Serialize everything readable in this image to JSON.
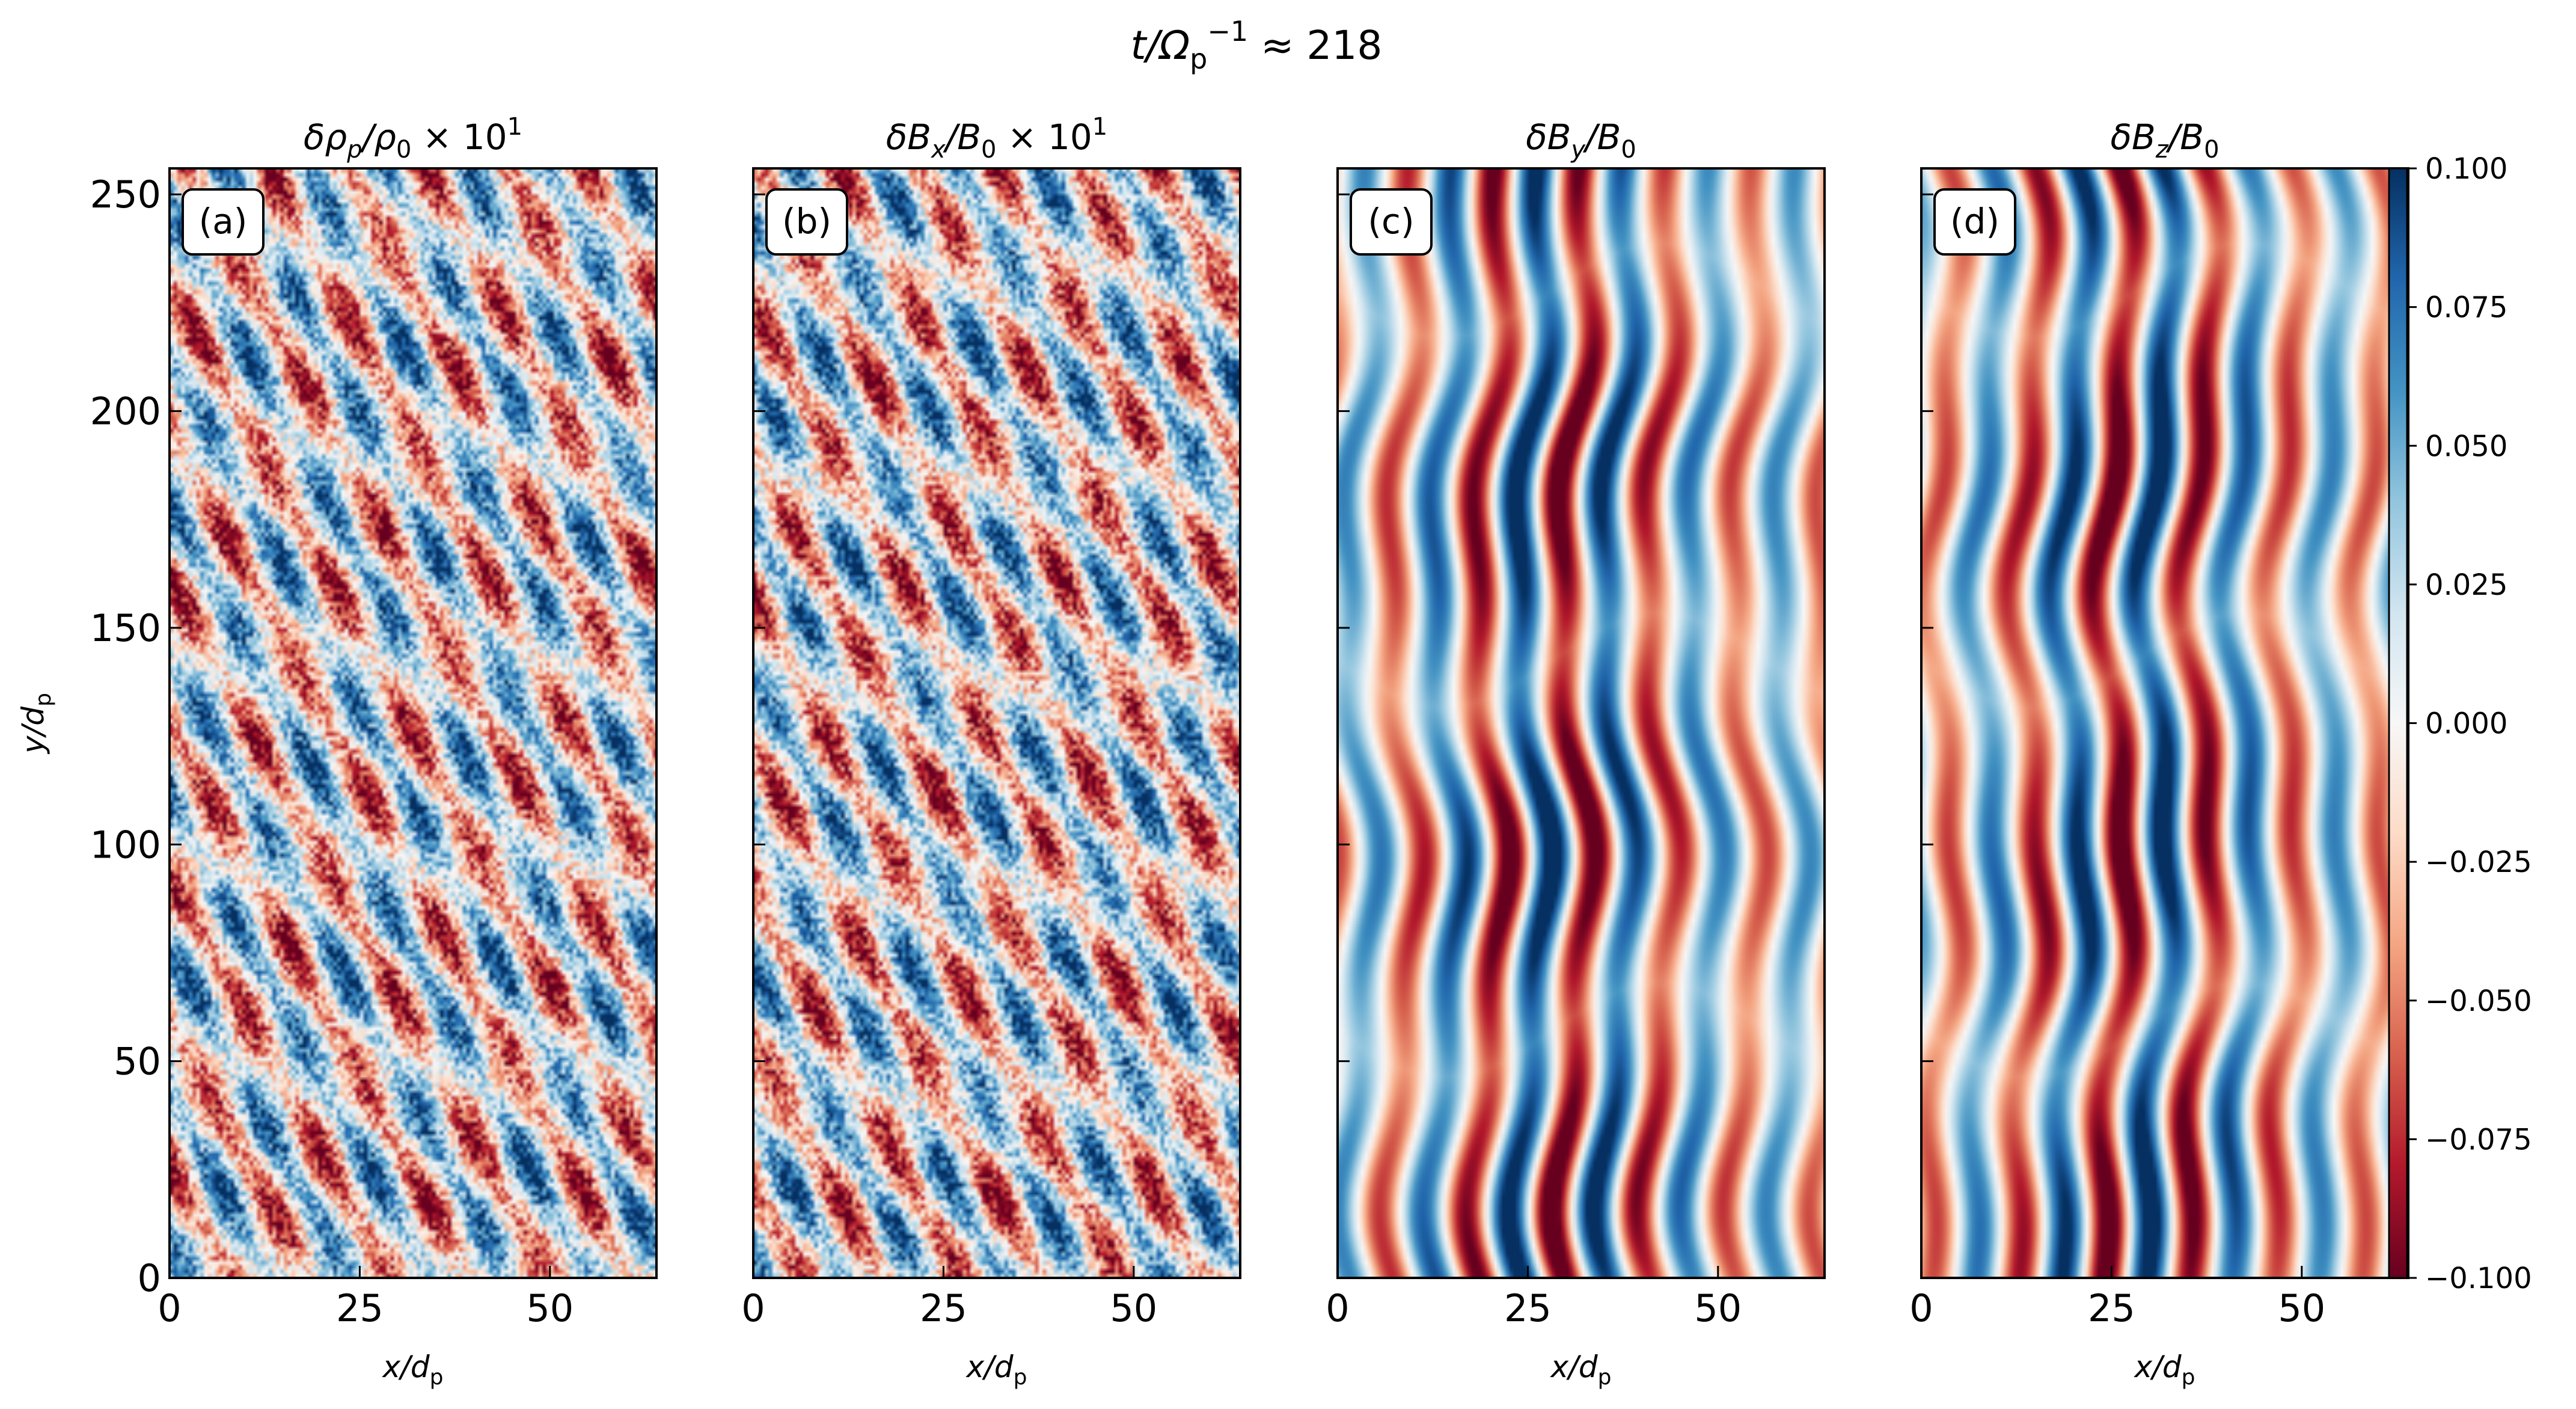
{
  "figure": {
    "suptitle": {
      "prefix": "t/Ω",
      "sub": "p",
      "sup": "−1",
      "suffix": " ≈ 218"
    }
  },
  "chart_data": [
    {
      "type": "heatmap",
      "panel_label": "(a)",
      "title": {
        "main": "δρ",
        "sub": "p",
        "rest": "/ρ",
        "sub2": "0",
        "tail": " × 10",
        "sup": "1"
      },
      "xlabel": {
        "main": "x/d",
        "sub": "p"
      },
      "ylabel": {
        "main": "y/d",
        "sub": "p"
      },
      "xlim": [
        0,
        64
      ],
      "ylim": [
        0,
        256
      ],
      "xticks": [
        0,
        25,
        50
      ],
      "yticks": [
        0,
        50,
        100,
        150,
        200,
        250
      ],
      "show_yticklabels": true,
      "clim": [
        -0.1,
        0.1
      ],
      "cmap": "RdBu",
      "field": "noisy oblique wave pattern"
    },
    {
      "type": "heatmap",
      "panel_label": "(b)",
      "title": {
        "main": "δB",
        "sub": "x",
        "rest": "/B",
        "sub2": "0",
        "tail": " × 10",
        "sup": "1"
      },
      "xlabel": {
        "main": "x/d",
        "sub": "p"
      },
      "xlim": [
        0,
        64
      ],
      "ylim": [
        0,
        256
      ],
      "xticks": [
        0,
        25,
        50
      ],
      "yticks": [
        0,
        50,
        100,
        150,
        200,
        250
      ],
      "show_yticklabels": false,
      "clim": [
        -0.1,
        0.1
      ],
      "cmap": "RdBu",
      "field": "noisy oblique wave pattern"
    },
    {
      "type": "heatmap",
      "panel_label": "(c)",
      "title": {
        "main": "δB",
        "sub": "y",
        "rest": "/B",
        "sub2": "0",
        "tail": "",
        "sup": ""
      },
      "xlabel": {
        "main": "x/d",
        "sub": "p"
      },
      "xlim": [
        0,
        64
      ],
      "ylim": [
        0,
        256
      ],
      "xticks": [
        0,
        25,
        50
      ],
      "yticks": [
        0,
        50,
        100,
        150,
        200,
        250
      ],
      "show_yticklabels": false,
      "clim": [
        -0.1,
        0.1
      ],
      "cmap": "RdBu",
      "field": "smooth wavy vertical stripes"
    },
    {
      "type": "heatmap",
      "panel_label": "(d)",
      "title": {
        "main": "δB",
        "sub": "z",
        "rest": "/B",
        "sub2": "0",
        "tail": "",
        "sup": ""
      },
      "xlabel": {
        "main": "x/d",
        "sub": "p"
      },
      "xlim": [
        0,
        64
      ],
      "ylim": [
        0,
        256
      ],
      "xticks": [
        0,
        25,
        50
      ],
      "yticks": [
        0,
        50,
        100,
        150,
        200,
        250
      ],
      "show_yticklabels": false,
      "clim": [
        -0.1,
        0.1
      ],
      "cmap": "RdBu",
      "field": "smooth wavy vertical stripes"
    }
  ],
  "colorbar": {
    "vmin": -0.1,
    "vmax": 0.1,
    "ticks": [
      -0.1,
      -0.075,
      -0.05,
      -0.025,
      0.0,
      0.025,
      0.05,
      0.075,
      0.1
    ],
    "ticklabels": [
      "−0.100",
      "−0.075",
      "−0.050",
      "−0.025",
      "0.000",
      "0.025",
      "0.050",
      "0.075",
      "0.100"
    ],
    "cmap_stops": [
      "#67001f",
      "#b2182b",
      "#d6604d",
      "#f4a582",
      "#fddbc7",
      "#f7f7f7",
      "#d1e5f0",
      "#92c5de",
      "#4393c3",
      "#2166ac",
      "#053061"
    ]
  }
}
